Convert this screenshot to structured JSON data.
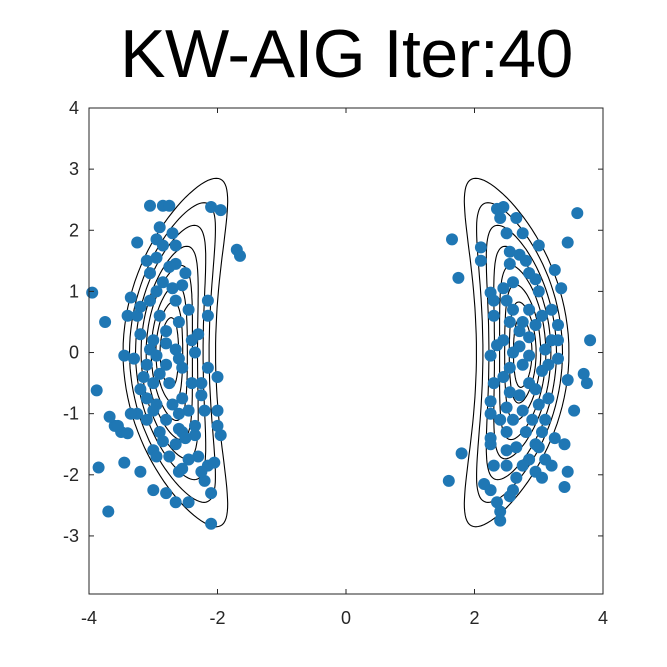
{
  "chart_data": {
    "type": "scatter",
    "title": "KW-AIG Iter:40",
    "xlabel": "",
    "ylabel": "",
    "xlim": [
      -4,
      4
    ],
    "ylim": [
      -3.95,
      4
    ],
    "xticks": [
      -4,
      -2,
      0,
      2,
      4
    ],
    "yticks": [
      -3,
      -2,
      -1,
      0,
      1,
      2,
      3,
      4
    ],
    "grid": false,
    "legend": "none",
    "colors": {
      "points": "#1f77b4",
      "contours": "#000000",
      "axes": "#262626"
    },
    "contours": {
      "description_levels": 8,
      "centers": [
        [
          -2.75,
          0
        ],
        [
          2.75,
          0
        ]
      ]
    },
    "series": [
      {
        "values": [
          [
            -3.95,
            0.98
          ],
          [
            -3.75,
            0.5
          ],
          [
            -3.88,
            -0.62
          ],
          [
            -3.6,
            -1.2
          ],
          [
            -3.68,
            -1.05
          ],
          [
            -3.5,
            -1.3
          ],
          [
            -3.4,
            -1.32
          ],
          [
            -3.45,
            -1.8
          ],
          [
            -3.85,
            -1.88
          ],
          [
            -3.7,
            -2.6
          ],
          [
            -3.4,
            0.6
          ],
          [
            -3.35,
            0.9
          ],
          [
            -3.25,
            1.8
          ],
          [
            -3.45,
            -0.05
          ],
          [
            -3.3,
            -0.1
          ],
          [
            -3.2,
            0.3
          ],
          [
            -3.05,
            2.4
          ],
          [
            -2.85,
            2.4
          ],
          [
            -3.1,
            1.5
          ],
          [
            -3.05,
            1.3
          ],
          [
            -3.2,
            -0.6
          ],
          [
            -3.15,
            -0.4
          ],
          [
            -3.25,
            -1.0
          ],
          [
            -3.1,
            -1.1
          ],
          [
            -3.0,
            -1.6
          ],
          [
            -3.2,
            -1.95
          ],
          [
            -3.0,
            -2.25
          ],
          [
            -2.8,
            -2.3
          ],
          [
            -2.9,
            -1.3
          ],
          [
            -2.95,
            -0.85
          ],
          [
            -2.8,
            -1.1
          ],
          [
            -2.65,
            -2.45
          ],
          [
            -2.45,
            -2.45
          ],
          [
            -2.1,
            -2.8
          ],
          [
            -2.2,
            -2.1
          ],
          [
            -2.1,
            -2.3
          ],
          [
            -2.15,
            -1.85
          ],
          [
            -2.05,
            -1.8
          ],
          [
            -2.3,
            -1.7
          ],
          [
            -2.45,
            -1.75
          ],
          [
            -2.6,
            -1.95
          ],
          [
            -2.35,
            -1.35
          ],
          [
            -2.35,
            -1.2
          ],
          [
            -1.95,
            -1.35
          ],
          [
            -2.0,
            -1.2
          ],
          [
            -2.0,
            -0.95
          ],
          [
            -2.45,
            -0.95
          ],
          [
            -2.55,
            -0.75
          ],
          [
            -2.2,
            -0.95
          ],
          [
            -2.25,
            -0.7
          ],
          [
            -2.25,
            -0.5
          ],
          [
            -2.15,
            -0.25
          ],
          [
            -2.0,
            -0.4
          ],
          [
            -2.4,
            -0.5
          ],
          [
            -2.55,
            -0.25
          ],
          [
            -2.35,
            0.0
          ],
          [
            -2.4,
            0.2
          ],
          [
            -2.3,
            0.3
          ],
          [
            -2.15,
            0.6
          ],
          [
            -2.15,
            0.85
          ],
          [
            -2.45,
            0.7
          ],
          [
            -2.6,
            0.5
          ],
          [
            -2.65,
            0.85
          ],
          [
            -2.55,
            1.1
          ],
          [
            -2.5,
            1.3
          ],
          [
            -2.7,
            1.05
          ],
          [
            -2.65,
            1.45
          ],
          [
            -2.75,
            1.4
          ],
          [
            -2.85,
            1.15
          ],
          [
            -2.95,
            1.0
          ],
          [
            -3.05,
            0.85
          ],
          [
            -2.9,
            0.6
          ],
          [
            -2.8,
            0.35
          ],
          [
            -3.0,
            0.2
          ],
          [
            -3.05,
            0.05
          ],
          [
            -2.95,
            -0.05
          ],
          [
            -2.8,
            0.15
          ],
          [
            -2.65,
            0.05
          ],
          [
            -2.6,
            -0.1
          ],
          [
            -2.9,
            -0.35
          ],
          [
            -2.75,
            -0.5
          ],
          [
            -3.0,
            -0.5
          ],
          [
            -3.0,
            -0.95
          ],
          [
            -3.1,
            -0.75
          ],
          [
            -2.7,
            -0.85
          ],
          [
            -2.6,
            -1.0
          ],
          [
            -2.55,
            -1.3
          ],
          [
            -2.65,
            -1.5
          ],
          [
            -2.85,
            -1.45
          ],
          [
            -2.6,
            -1.25
          ],
          [
            -2.5,
            -1.4
          ],
          [
            -2.75,
            -1.7
          ],
          [
            -2.95,
            -1.7
          ],
          [
            -2.55,
            -1.9
          ],
          [
            -2.25,
            -1.95
          ],
          [
            -2.75,
            2.4
          ],
          [
            -2.7,
            1.95
          ],
          [
            -2.9,
            2.05
          ],
          [
            -2.95,
            1.85
          ],
          [
            -2.65,
            1.75
          ],
          [
            -2.85,
            1.75
          ],
          [
            -2.95,
            1.55
          ],
          [
            -2.1,
            2.38
          ],
          [
            -1.95,
            2.33
          ],
          [
            -1.7,
            1.68
          ],
          [
            -1.65,
            1.58
          ],
          [
            -3.55,
            -1.2
          ],
          [
            -3.35,
            -1.0
          ],
          [
            -3.1,
            -0.2
          ],
          [
            -3.25,
            0.6
          ],
          [
            -3.2,
            0.75
          ],
          [
            -2.8,
            -0.2
          ],
          [
            1.65,
            1.85
          ],
          [
            1.75,
            1.22
          ],
          [
            2.1,
            1.72
          ],
          [
            2.1,
            1.5
          ],
          [
            2.25,
            0.98
          ],
          [
            2.3,
            0.85
          ],
          [
            2.3,
            0.6
          ],
          [
            2.35,
            0.12
          ],
          [
            2.25,
            -0.05
          ],
          [
            2.3,
            -0.5
          ],
          [
            2.25,
            -0.8
          ],
          [
            2.25,
            -1.0
          ],
          [
            2.25,
            -1.4
          ],
          [
            2.25,
            -1.5
          ],
          [
            2.3,
            -1.85
          ],
          [
            2.15,
            -2.15
          ],
          [
            2.25,
            -2.25
          ],
          [
            2.35,
            -2.45
          ],
          [
            2.4,
            -2.6
          ],
          [
            2.4,
            -2.75
          ],
          [
            2.55,
            -2.35
          ],
          [
            2.6,
            -2.25
          ],
          [
            2.65,
            -2.05
          ],
          [
            2.5,
            -1.85
          ],
          [
            2.5,
            -1.6
          ],
          [
            2.5,
            -1.3
          ],
          [
            2.6,
            -1.1
          ],
          [
            2.5,
            -0.9
          ],
          [
            2.55,
            -0.65
          ],
          [
            2.45,
            -0.4
          ],
          [
            2.55,
            -0.25
          ],
          [
            2.6,
            0.0
          ],
          [
            2.45,
            0.2
          ],
          [
            2.55,
            0.5
          ],
          [
            2.6,
            0.7
          ],
          [
            2.5,
            0.85
          ],
          [
            2.45,
            1.05
          ],
          [
            2.6,
            1.15
          ],
          [
            2.55,
            1.45
          ],
          [
            2.55,
            1.65
          ],
          [
            2.7,
            1.6
          ],
          [
            2.5,
            1.95
          ],
          [
            2.4,
            2.2
          ],
          [
            2.35,
            2.35
          ],
          [
            2.45,
            2.38
          ],
          [
            2.65,
            2.2
          ],
          [
            2.75,
            1.95
          ],
          [
            2.8,
            1.5
          ],
          [
            2.85,
            1.3
          ],
          [
            2.95,
            1.2
          ],
          [
            3.0,
            1.0
          ],
          [
            2.85,
            0.7
          ],
          [
            2.75,
            0.5
          ],
          [
            2.85,
            0.25
          ],
          [
            2.7,
            0.1
          ],
          [
            2.75,
            -0.2
          ],
          [
            2.85,
            -0.5
          ],
          [
            2.7,
            -0.7
          ],
          [
            2.75,
            -0.95
          ],
          [
            2.9,
            -1.1
          ],
          [
            2.8,
            -1.3
          ],
          [
            2.95,
            -1.5
          ],
          [
            2.85,
            -1.75
          ],
          [
            2.75,
            -1.85
          ],
          [
            3.0,
            -1.55
          ],
          [
            3.05,
            -1.3
          ],
          [
            3.1,
            -1.1
          ],
          [
            3.0,
            -0.85
          ],
          [
            2.95,
            -0.6
          ],
          [
            3.05,
            -0.3
          ],
          [
            3.15,
            -0.2
          ],
          [
            3.1,
            0.05
          ],
          [
            3.2,
            0.2
          ],
          [
            3.3,
            0.2
          ],
          [
            3.3,
            -0.1
          ],
          [
            3.3,
            0.45
          ],
          [
            3.2,
            0.7
          ],
          [
            3.25,
            1.35
          ],
          [
            3.0,
            1.75
          ],
          [
            2.95,
            -1.95
          ],
          [
            3.1,
            -1.75
          ],
          [
            3.2,
            -1.85
          ],
          [
            3.05,
            -2.05
          ],
          [
            3.25,
            -1.4
          ],
          [
            3.4,
            -1.5
          ],
          [
            3.45,
            -1.95
          ],
          [
            3.4,
            -2.2
          ],
          [
            3.45,
            -0.45
          ],
          [
            3.55,
            -0.95
          ],
          [
            3.6,
            2.28
          ],
          [
            3.8,
            0.2
          ],
          [
            3.7,
            -0.35
          ],
          [
            3.75,
            -0.5
          ],
          [
            3.15,
            -0.75
          ],
          [
            2.85,
            -0.05
          ],
          [
            2.95,
            0.45
          ],
          [
            3.35,
            1.05
          ],
          [
            3.45,
            1.8
          ],
          [
            2.4,
            -1.1
          ],
          [
            2.65,
            -1.55
          ],
          [
            1.6,
            -2.1
          ],
          [
            1.8,
            -1.65
          ],
          [
            2.7,
            0.35
          ],
          [
            3.05,
            0.6
          ]
        ]
      }
    ]
  }
}
